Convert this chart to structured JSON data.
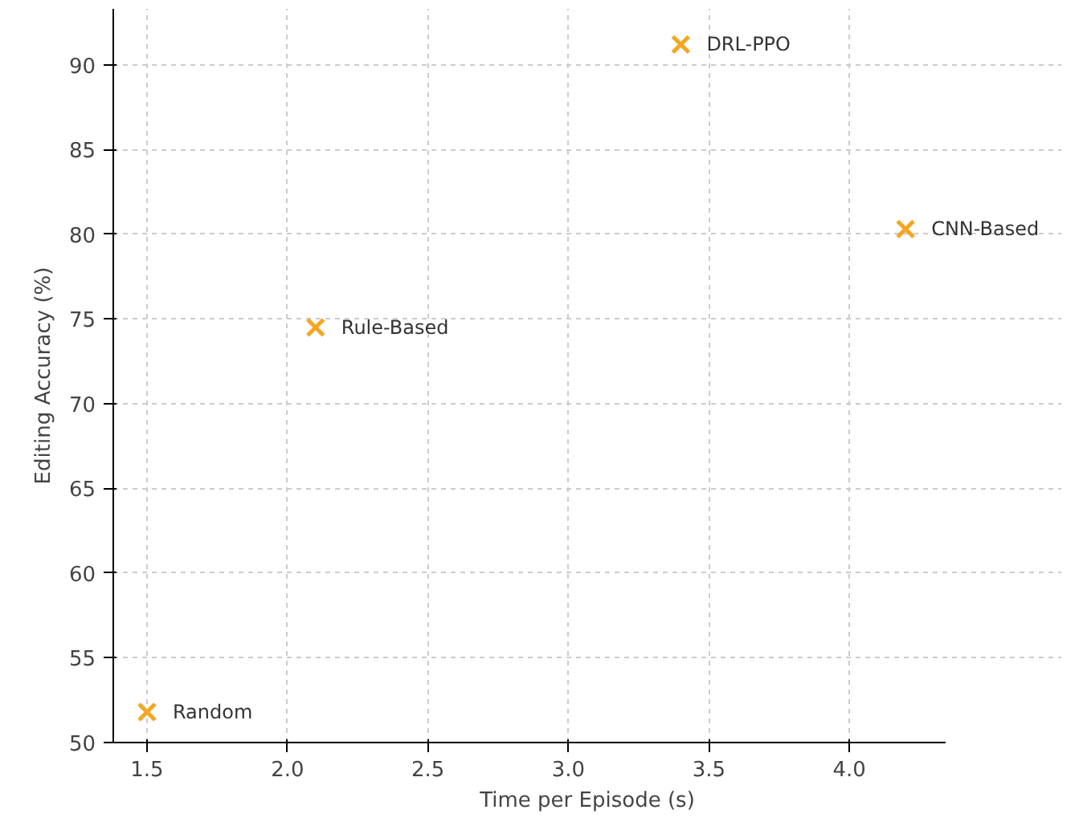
{
  "chart_data": {
    "type": "scatter",
    "xlabel": "Time per Episode (s)",
    "ylabel": "Editing Accuracy (%)",
    "x": [
      1.5,
      2.1,
      3.4,
      4.2
    ],
    "series": [
      {
        "color": "#f5a623",
        "values": [
          51.8,
          74.5,
          91.2,
          80.3
        ]
      }
    ],
    "annotations": [
      {
        "text": "Random",
        "x": 1.5,
        "y": 51.8
      },
      {
        "text": "Rule-Based",
        "x": 2.1,
        "y": 74.5
      },
      {
        "text": "DRL-PPO",
        "x": 3.4,
        "y": 91.2
      },
      {
        "text": "CNN-Based",
        "x": 4.2,
        "y": 80.3
      }
    ],
    "xlim": [
      1.38,
      4.34
    ],
    "ylim": [
      50,
      93.3
    ],
    "xticks": [
      {
        "value": 1.5,
        "label": "1.5"
      },
      {
        "value": 2.0,
        "label": "2.0"
      },
      {
        "value": 2.5,
        "label": "2.5"
      },
      {
        "value": 3.0,
        "label": "3.0"
      },
      {
        "value": 3.5,
        "label": "3.5"
      },
      {
        "value": 4.0,
        "label": "4.0"
      }
    ],
    "yticks": [
      50,
      55,
      60,
      65,
      70,
      75,
      80,
      85,
      90
    ],
    "grid": true,
    "marker": "cross"
  }
}
